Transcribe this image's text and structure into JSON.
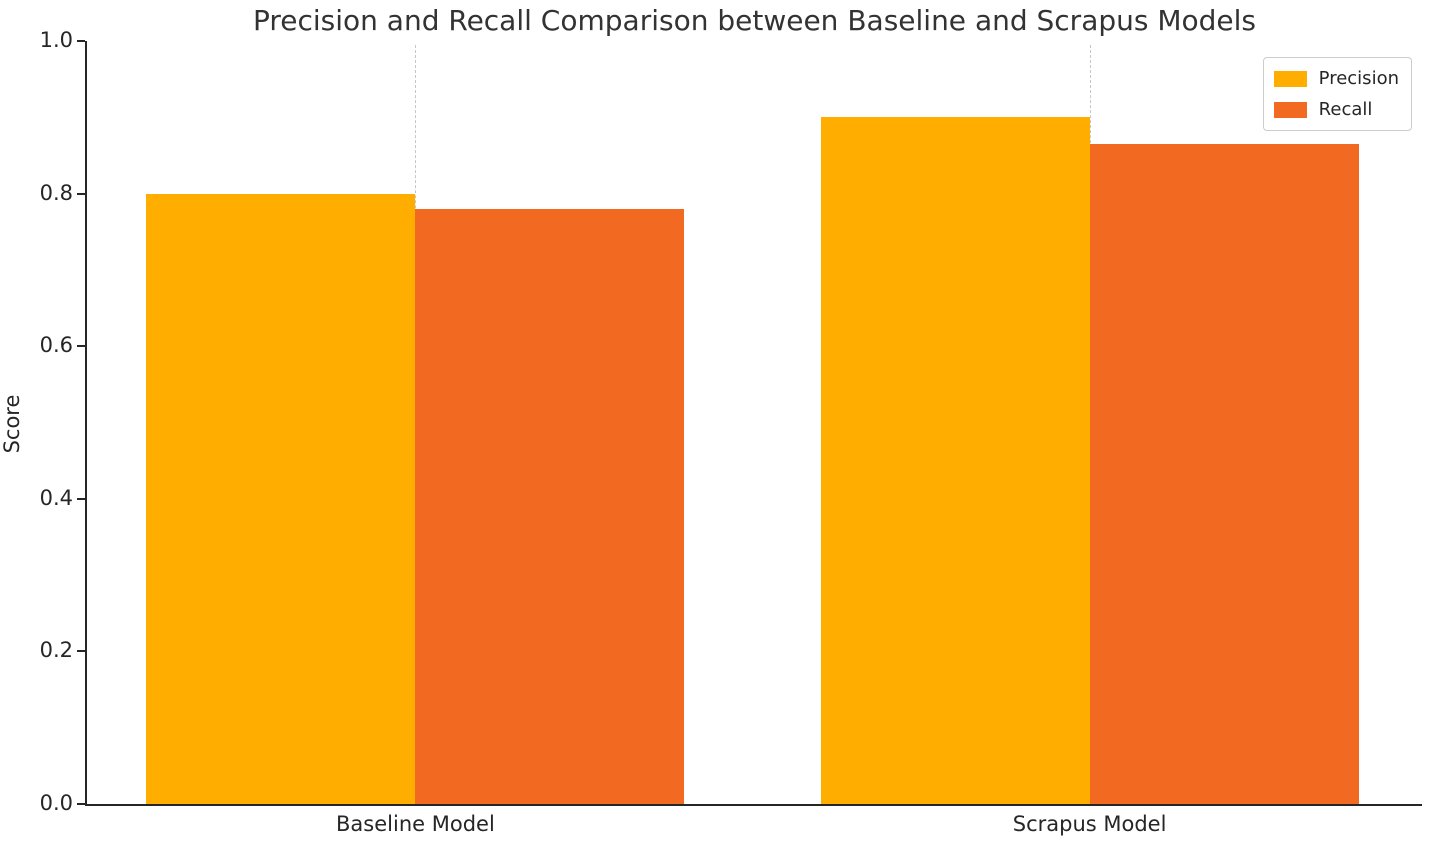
{
  "chart_data": {
    "type": "bar",
    "title": "Precision and Recall Comparison between Baseline and Scrapus Models",
    "xlabel": "",
    "ylabel": "Score",
    "categories": [
      "Baseline Model",
      "Scrapus Model"
    ],
    "series": [
      {
        "name": "Precision",
        "color": "#FFAE00",
        "values": [
          0.8,
          0.9
        ]
      },
      {
        "name": "Recall",
        "color": "#F26A21",
        "values": [
          0.78,
          0.865
        ]
      }
    ],
    "ylim": [
      0.0,
      1.0
    ],
    "yticks": [
      "0.0",
      "0.2",
      "0.4",
      "0.6",
      "0.8",
      "1.0"
    ],
    "legend_position": "upper right",
    "grid": "vertical-dashed-at-category-centers",
    "title_color": "#333333",
    "axis_color": "#262626"
  }
}
